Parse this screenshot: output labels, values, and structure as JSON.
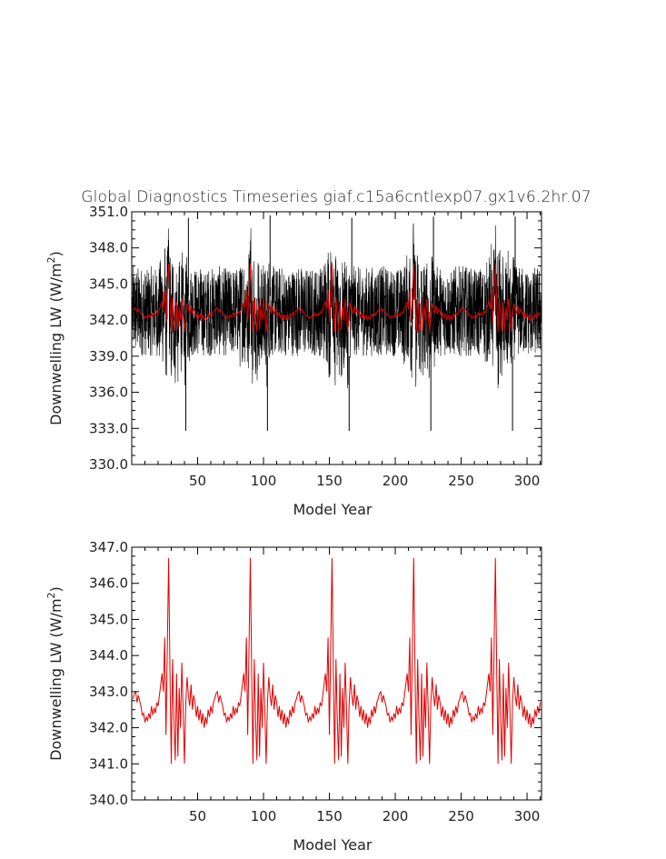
{
  "figure": {
    "title": "Global Diagnostics Timeseries giaf.c15a6cntlexp07.gx1v6.2hr.07",
    "colors": {
      "raw": "#000000",
      "smoothed": "#e00000",
      "axes": "#000000",
      "background": "#ffffff"
    }
  },
  "chart_data": [
    {
      "type": "line",
      "name": "top-panel",
      "title": "Global Diagnostics Timeseries giaf.c15a6cntlexp07.gx1v6.2hr.07",
      "xlabel": "Model Year",
      "ylabel_main": "Downwelling LW (W/m",
      "ylabel_sup": "2",
      "ylabel_close": ")",
      "xlim": [
        0,
        311
      ],
      "ylim": [
        330.0,
        351.0
      ],
      "x_ticks": [
        50,
        100,
        150,
        200,
        250,
        300
      ],
      "x_tick_labels": [
        "50",
        "100",
        "150",
        "200",
        "250",
        "300"
      ],
      "y_ticks": [
        330.0,
        333.0,
        336.0,
        339.0,
        342.0,
        345.0,
        348.0,
        351.0
      ],
      "y_tick_labels": [
        "330.0",
        "333.0",
        "336.0",
        "339.0",
        "342.0",
        "345.0",
        "348.0",
        "351.0"
      ],
      "grid": false,
      "cycle_years": 62,
      "cycle_starts": [
        0,
        62,
        124,
        186,
        248
      ],
      "raw_series": {
        "color": "#000000",
        "baseline_envelope": [
          339.0,
          346.5
        ],
        "anomaly_envelope": [
          336.0,
          350.5
        ],
        "minimum_spikes": [
          {
            "x": 41,
            "y": 332.8
          },
          {
            "x": 103,
            "y": 332.8
          },
          {
            "x": 165,
            "y": 332.8
          },
          {
            "x": 227,
            "y": 332.8
          },
          {
            "x": 289,
            "y": 332.8
          }
        ],
        "maximum_spikes": [
          {
            "x": 43,
            "y": 350.5
          },
          {
            "x": 105,
            "y": 350.7
          },
          {
            "x": 167,
            "y": 350.5
          },
          {
            "x": 229,
            "y": 350.6
          },
          {
            "x": 291,
            "y": 350.6
          }
        ]
      },
      "smoothed_series": {
        "color": "#e00000",
        "ref": "bottom-panel"
      }
    },
    {
      "type": "line",
      "name": "bottom-panel",
      "xlabel": "Model Year",
      "ylabel_main": "Downwelling LW (W/m",
      "ylabel_sup": "2",
      "ylabel_close": ")",
      "xlim": [
        0,
        311
      ],
      "ylim": [
        340.0,
        347.0
      ],
      "x_ticks": [
        50,
        100,
        150,
        200,
        250,
        300
      ],
      "x_tick_labels": [
        "50",
        "100",
        "150",
        "200",
        "250",
        "300"
      ],
      "y_ticks": [
        340.0,
        341.0,
        342.0,
        343.0,
        344.0,
        345.0,
        346.0,
        347.0
      ],
      "y_tick_labels": [
        "340.0",
        "341.0",
        "342.0",
        "343.0",
        "344.0",
        "345.0",
        "346.0",
        "347.0"
      ],
      "grid": false,
      "series": [
        {
          "color": "#e00000",
          "cycle_x": [
            1,
            2,
            3,
            4,
            5,
            6,
            7,
            8,
            9,
            10,
            11,
            12,
            13,
            14,
            15,
            16,
            17,
            18,
            19,
            20,
            21,
            22,
            23,
            24,
            25,
            26,
            27,
            28,
            29,
            30,
            31,
            32,
            33,
            34,
            35,
            36,
            37,
            38,
            39,
            40,
            41,
            42,
            43,
            44,
            45,
            46,
            47,
            48,
            49,
            50,
            51,
            52,
            53,
            54,
            55,
            56,
            57,
            58,
            59,
            60,
            61,
            62
          ],
          "cycle_y": [
            342.8,
            342.95,
            343.0,
            342.7,
            342.9,
            342.75,
            342.6,
            342.35,
            342.4,
            342.15,
            342.3,
            342.2,
            342.4,
            342.25,
            342.6,
            342.35,
            342.55,
            342.4,
            342.7,
            342.6,
            342.9,
            343.2,
            343.5,
            343.0,
            344.5,
            341.8,
            344.2,
            346.7,
            343.6,
            341.0,
            343.9,
            342.2,
            341.1,
            343.5,
            341.2,
            343.1,
            342.0,
            343.8,
            342.5,
            341.0,
            342.7,
            343.4,
            342.9,
            342.6,
            343.2,
            342.5,
            342.9,
            342.7,
            342.3,
            342.6,
            342.2,
            342.5,
            342.1,
            342.4,
            342.0,
            342.3,
            342.1,
            342.5,
            342.3,
            342.6,
            342.4,
            342.7
          ],
          "cycle_starts": [
            0,
            62,
            124,
            186,
            248
          ],
          "x_max": 310
        }
      ]
    }
  ]
}
